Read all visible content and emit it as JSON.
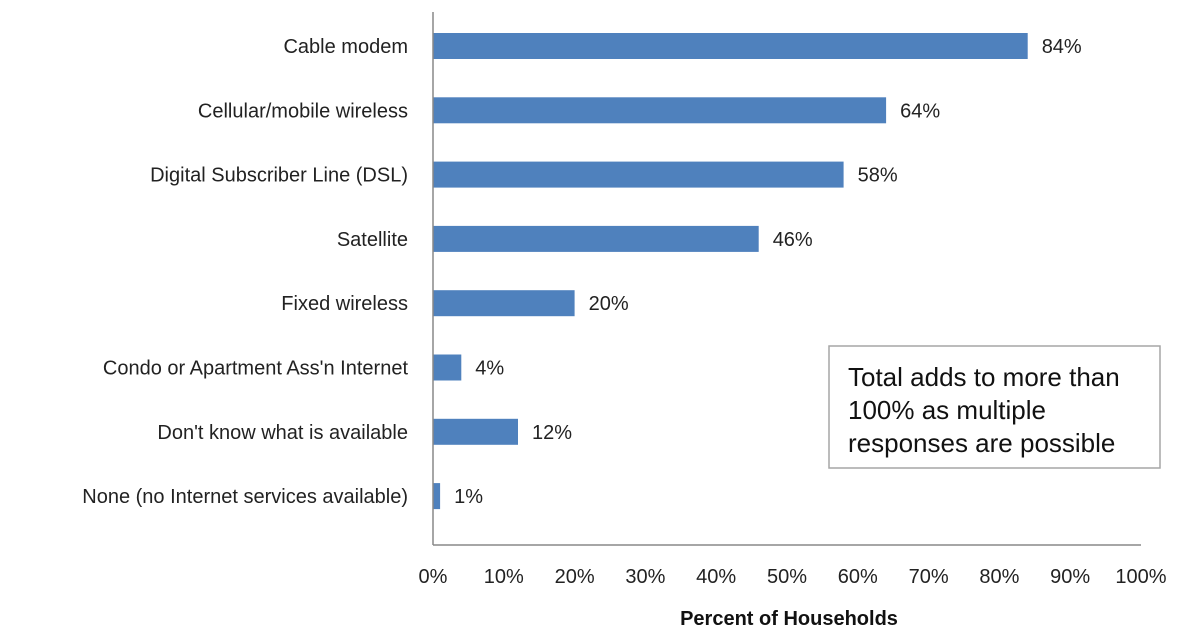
{
  "chart_data": {
    "type": "bar",
    "orientation": "horizontal",
    "categories": [
      "Cable modem",
      "Cellular/mobile wireless",
      "Digital Subscriber Line (DSL)",
      "Satellite",
      "Fixed wireless",
      "Condo or Apartment Ass'n Internet",
      "Don't know what is available",
      "None (no Internet services available)"
    ],
    "values": [
      84,
      64,
      58,
      46,
      20,
      4,
      12,
      1
    ],
    "value_labels": [
      "84%",
      "64%",
      "58%",
      "46%",
      "20%",
      "4%",
      "12%",
      "1%"
    ],
    "xlabel": "Percent of Households",
    "xlim": [
      0,
      100
    ],
    "x_ticks": [
      "0%",
      "10%",
      "20%",
      "30%",
      "40%",
      "50%",
      "60%",
      "70%",
      "80%",
      "90%",
      "100%"
    ],
    "grid": false,
    "legend": "none",
    "bar_color": "#4f81bd",
    "annotation": {
      "lines": [
        "Total adds to more than",
        "100% as multiple",
        "responses are possible"
      ]
    }
  }
}
